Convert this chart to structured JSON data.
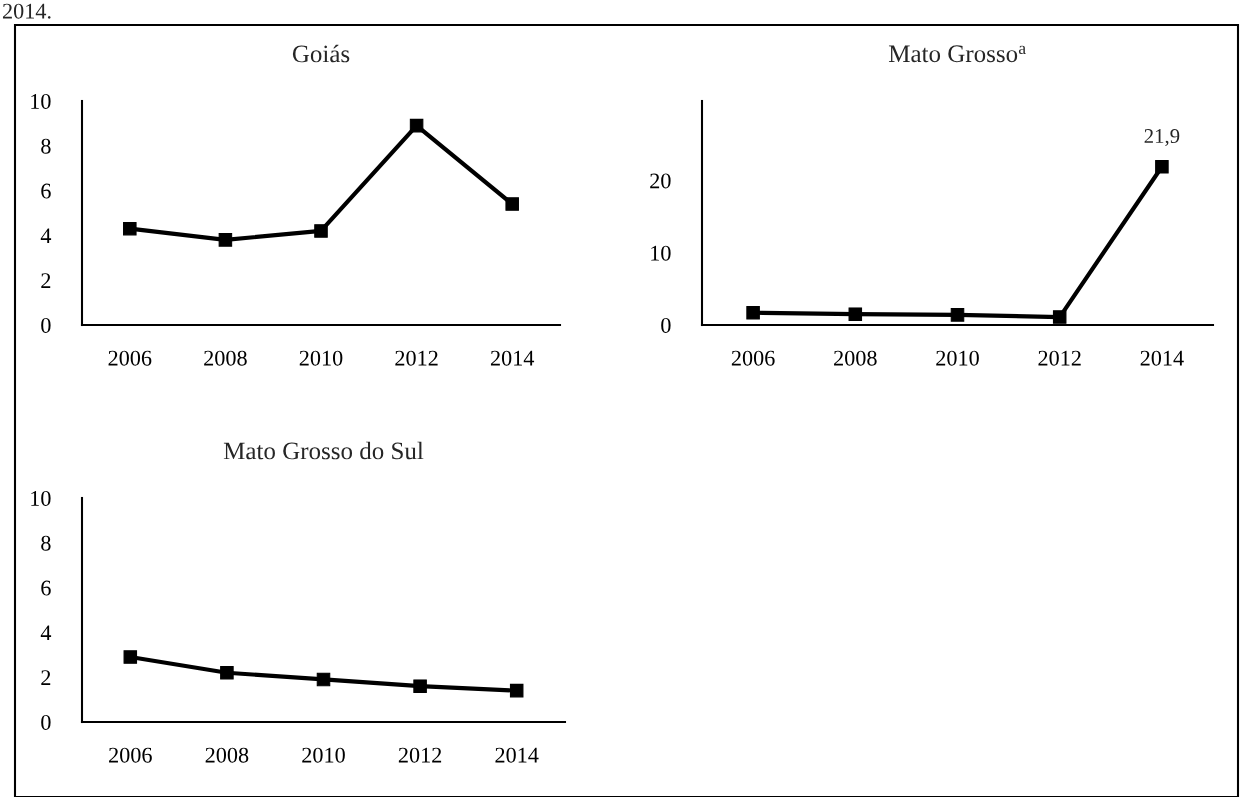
{
  "chart_data": [
    {
      "type": "line",
      "title": "Goiás",
      "annotations": [
        "2014."
      ],
      "categories": [
        "2006",
        "2008",
        "2010",
        "2012",
        "2014"
      ],
      "values": [
        4.3,
        3.8,
        4.2,
        8.9,
        5.4
      ],
      "color": "#000000",
      "ylim": [
        0,
        10
      ],
      "yticks": [
        0,
        2,
        4,
        6,
        8,
        10
      ],
      "marker": "square",
      "grid": false
    },
    {
      "type": "line",
      "title": "Mato Grosso$^{a}$",
      "categories": [
        "2006",
        "2008",
        "2010",
        "2012",
        "2014"
      ],
      "values": [
        1.7,
        1.5,
        1.4,
        1.1,
        21.9
      ],
      "value_labels": [
        null,
        null,
        null,
        null,
        "21,9"
      ],
      "color": "#000000",
      "ylim": [
        0,
        31
      ],
      "yticks": [
        0,
        10,
        20
      ],
      "marker": "square",
      "grid": false
    },
    {
      "type": "line",
      "title": "Mato Grosso do Sul",
      "categories": [
        "2006",
        "2008",
        "2010",
        "2012",
        "2014"
      ],
      "values": [
        2.9,
        2.2,
        1.9,
        1.6,
        1.4
      ],
      "color": "#000000",
      "ylim": [
        0,
        10
      ],
      "yticks": [
        0,
        2,
        4,
        6,
        8,
        10
      ],
      "marker": "square",
      "grid": false
    }
  ]
}
